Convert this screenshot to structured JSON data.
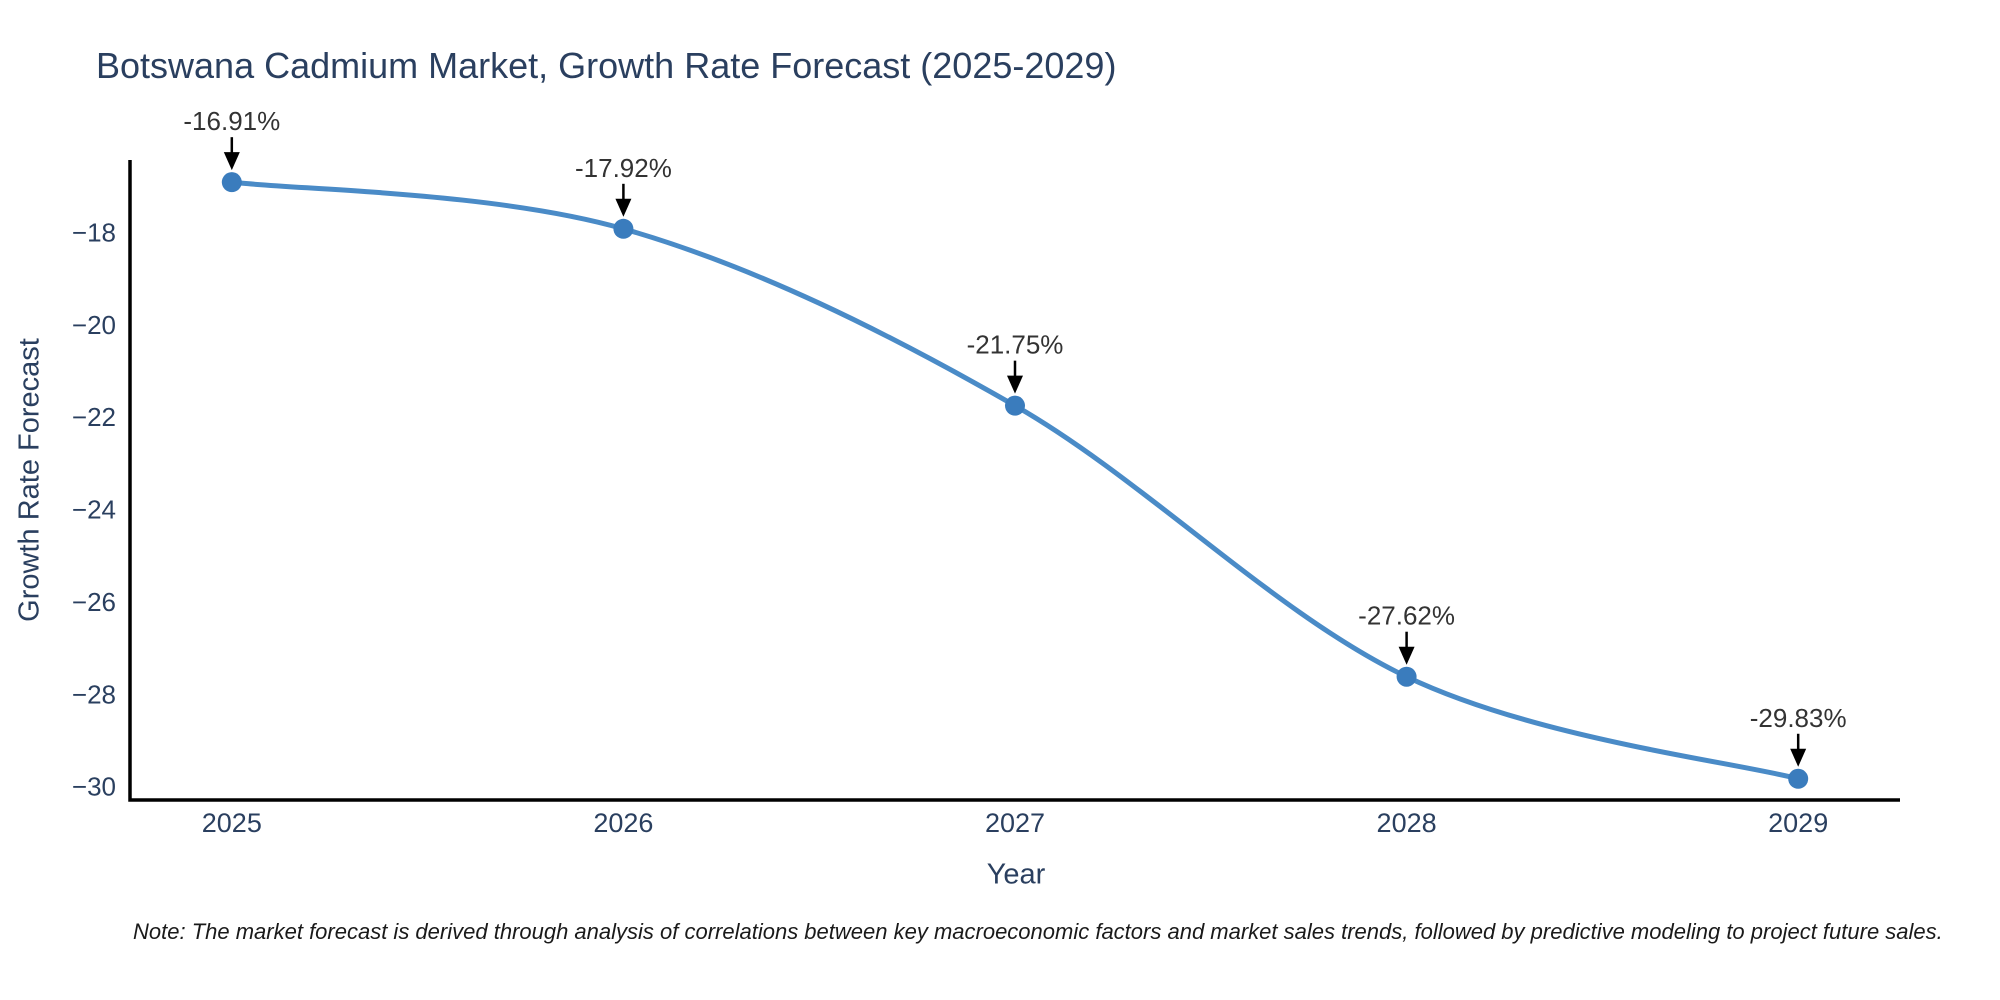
{
  "chart": {
    "note": "Note: The market forecast is derived through analysis of correlations between key macroeconomic factors and market sales trends, followed by predictive modeling to project future sales."
  },
  "chart_data": {
    "type": "line",
    "title": "Botswana Cadmium Market, Growth Rate Forecast (2025-2029)",
    "xlabel": "Year",
    "ylabel": "Growth Rate Forecast",
    "x": [
      2025,
      2026,
      2027,
      2028,
      2029
    ],
    "values": [
      -16.91,
      -17.92,
      -21.75,
      -27.62,
      -29.83
    ],
    "point_labels": [
      "-16.91%",
      "-17.92%",
      "-21.75%",
      "-27.62%",
      "-29.83%"
    ],
    "yticks": [
      -18,
      -20,
      -22,
      -24,
      -26,
      -28,
      -30
    ],
    "xlim": [
      2024.74,
      2029.26
    ],
    "ylim": [
      -30.29,
      -16.43
    ],
    "line_shape": "spline",
    "grid": false,
    "legend": "none",
    "annotation_style": "down-arrow-to-point",
    "colors": {
      "line": "#4a8bc7",
      "marker": "#3a7cbd",
      "axis": "#000000",
      "tick_text": "#2a3f5f",
      "annotation_text": "#333333",
      "arrow": "#000000"
    }
  }
}
